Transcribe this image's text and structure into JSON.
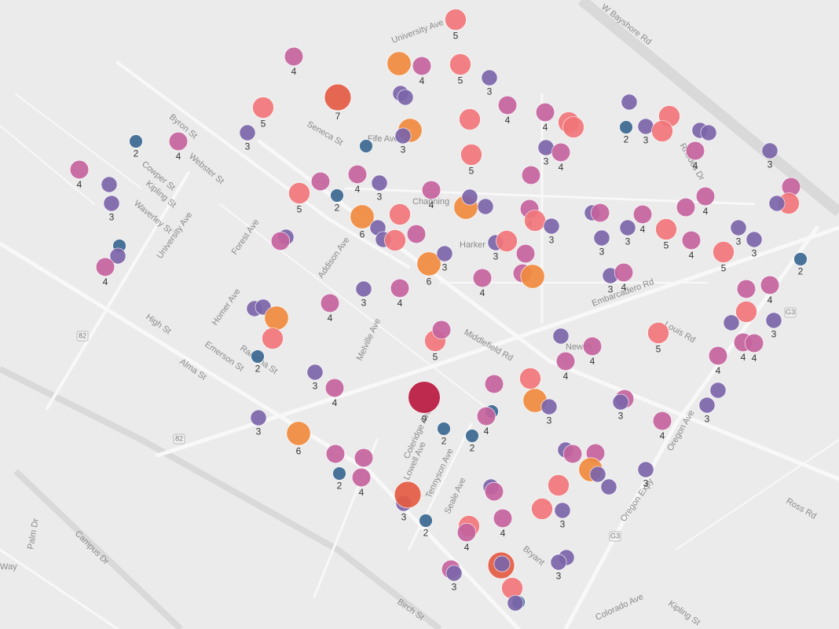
{
  "map": {
    "colors": {
      "2": "#3b6791",
      "3": "#7c65a9",
      "4": "#c4639d",
      "5": "#f17579",
      "6": "#f08a3e",
      "7": "#e45b43",
      "9": "#b8193f"
    },
    "streets": [
      "W Bayshore Rd",
      "University Ave",
      "Byron St",
      "Webster St",
      "Cowper St",
      "Kipling St",
      "Waverley St",
      "University Ave",
      "Forest Ave",
      "Addison Ave",
      "Homer Ave",
      "High St",
      "Emerson St",
      "Ramona St",
      "Alma St",
      "Melville Ave",
      "Middlefield Rd",
      "Embarcadero Rd",
      "Coleridge Ave",
      "Lowell Ave",
      "Tennyson Ave",
      "Seale Ave",
      "Oregon Expy",
      "Oregon Ave",
      "Louis Rd",
      "Ross Rd",
      "Colorado Ave",
      "Kipling St",
      "Birch St",
      "Campus Dr",
      "Palm Dr",
      "Way",
      "Seneca St",
      "Fife Ave",
      "Channing",
      "Harker",
      "Rhodes Dr",
      "Newell",
      "Bryant"
    ],
    "shields": [
      "82",
      "82",
      "G3",
      "G3"
    ],
    "markers": [
      5,
      4,
      6,
      4,
      5,
      3,
      3,
      3,
      7,
      5,
      3,
      2,
      4,
      4,
      2,
      6,
      3,
      4,
      4,
      5,
      5,
      3,
      2,
      3,
      5,
      5,
      3,
      3,
      4,
      3,
      3,
      4,
      5,
      5,
      3,
      3,
      4,
      4,
      3,
      5,
      2,
      4,
      6,
      5,
      3,
      3,
      5,
      4,
      4,
      6,
      3,
      3,
      4,
      5,
      3,
      3,
      4,
      4,
      3,
      5,
      4,
      4,
      4,
      3,
      3,
      5,
      4,
      5,
      3,
      2,
      3,
      3,
      4,
      2,
      3,
      4,
      6,
      3,
      3,
      5,
      4,
      4,
      4,
      6,
      3,
      4,
      4,
      3,
      4,
      3,
      3,
      6,
      5,
      2,
      4,
      4,
      5,
      3,
      3,
      4,
      4,
      5,
      3,
      4,
      4,
      5,
      4,
      4,
      3,
      4,
      9,
      4,
      5,
      6,
      3,
      4,
      3,
      4,
      3,
      3,
      3,
      6,
      2,
      2,
      2,
      4,
      4,
      4,
      4,
      2,
      3,
      4,
      4,
      6,
      3,
      3,
      3,
      3,
      7,
      2,
      3,
      4,
      4,
      5,
      5,
      3,
      5,
      4,
      7,
      3,
      3,
      3,
      4,
      3,
      5,
      2,
      3
    ]
  }
}
